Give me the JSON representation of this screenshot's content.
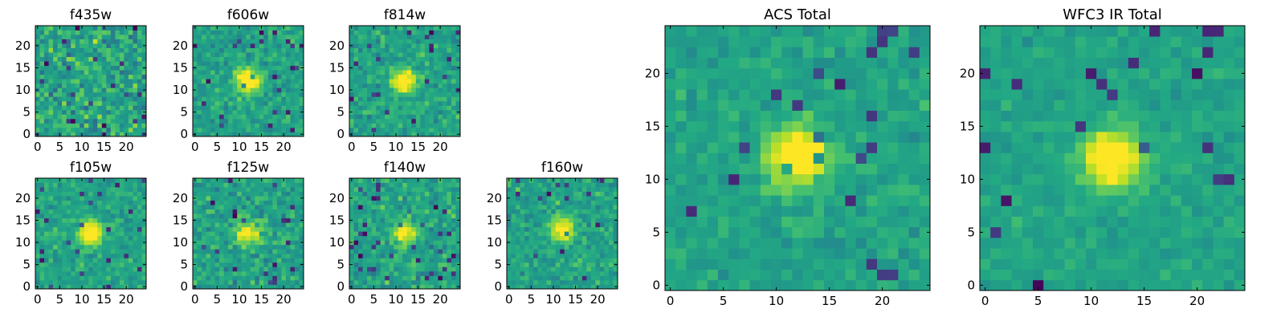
{
  "chart_data": [
    {
      "type": "heatmap",
      "title": "f435w",
      "x_ticks": [
        "0",
        "5",
        "10",
        "15",
        "20"
      ],
      "y_ticks": [
        "0",
        "5",
        "10",
        "15",
        "20"
      ],
      "grid_size": 25,
      "source_peak": [
        12,
        12
      ],
      "source_strength": 0.0,
      "noise": 0.55,
      "seed": 11,
      "xlim": [
        0,
        25
      ],
      "ylim": [
        0,
        25
      ],
      "colormap": "viridis"
    },
    {
      "type": "heatmap",
      "title": "f606w",
      "x_ticks": [
        "0",
        "5",
        "10",
        "15",
        "20"
      ],
      "y_ticks": [
        "0",
        "5",
        "10",
        "15",
        "20"
      ],
      "grid_size": 25,
      "source_peak": [
        12,
        12
      ],
      "source_strength": 0.55,
      "noise": 0.35,
      "seed": 23,
      "xlim": [
        0,
        25
      ],
      "ylim": [
        0,
        25
      ],
      "colormap": "viridis"
    },
    {
      "type": "heatmap",
      "title": "f814w",
      "x_ticks": [
        "0",
        "5",
        "10",
        "15",
        "20"
      ],
      "y_ticks": [
        "0",
        "5",
        "10",
        "15",
        "20"
      ],
      "grid_size": 25,
      "source_peak": [
        12,
        12
      ],
      "source_strength": 0.6,
      "noise": 0.35,
      "seed": 37,
      "xlim": [
        0,
        25
      ],
      "ylim": [
        0,
        25
      ],
      "colormap": "viridis"
    },
    {
      "type": "heatmap",
      "title": "f105w",
      "x_ticks": [
        "0",
        "5",
        "10",
        "15",
        "20"
      ],
      "y_ticks": [
        "0",
        "5",
        "10",
        "15",
        "20"
      ],
      "grid_size": 25,
      "source_peak": [
        12,
        12
      ],
      "source_strength": 0.6,
      "noise": 0.3,
      "seed": 41,
      "xlim": [
        0,
        25
      ],
      "ylim": [
        0,
        25
      ],
      "colormap": "viridis"
    },
    {
      "type": "heatmap",
      "title": "f125w",
      "x_ticks": [
        "0",
        "5",
        "10",
        "15",
        "20"
      ],
      "y_ticks": [
        "0",
        "5",
        "10",
        "15",
        "20"
      ],
      "grid_size": 25,
      "source_peak": [
        12,
        12
      ],
      "source_strength": 0.45,
      "noise": 0.4,
      "seed": 53,
      "xlim": [
        0,
        25
      ],
      "ylim": [
        0,
        25
      ],
      "colormap": "viridis"
    },
    {
      "type": "heatmap",
      "title": "f140w",
      "x_ticks": [
        "0",
        "5",
        "10",
        "15",
        "20"
      ],
      "y_ticks": [
        "0",
        "5",
        "10",
        "15",
        "20"
      ],
      "grid_size": 25,
      "source_peak": [
        12,
        12
      ],
      "source_strength": 0.45,
      "noise": 0.4,
      "seed": 67,
      "xlim": [
        0,
        25
      ],
      "ylim": [
        0,
        25
      ],
      "colormap": "viridis"
    },
    {
      "type": "heatmap",
      "title": "f160w",
      "x_ticks": [
        "0",
        "5",
        "10",
        "15",
        "20"
      ],
      "y_ticks": [
        "0",
        "5",
        "10",
        "15",
        "20"
      ],
      "grid_size": 25,
      "source_peak": [
        12,
        13
      ],
      "source_strength": 0.5,
      "noise": 0.35,
      "seed": 79,
      "xlim": [
        0,
        25
      ],
      "ylim": [
        0,
        25
      ],
      "colormap": "viridis"
    },
    {
      "type": "heatmap",
      "title": "ACS Total",
      "x_ticks": [
        "0",
        "5",
        "10",
        "15",
        "20"
      ],
      "y_ticks": [
        "0",
        "5",
        "10",
        "15",
        "20"
      ],
      "grid_size": 25,
      "source_peak": [
        12,
        12
      ],
      "source_strength": 0.65,
      "noise": 0.25,
      "seed": 89,
      "xlim": [
        0,
        25
      ],
      "ylim": [
        0,
        25
      ],
      "colormap": "viridis"
    },
    {
      "type": "heatmap",
      "title": "WFC3 IR Total",
      "x_ticks": [
        "0",
        "5",
        "10",
        "15",
        "20"
      ],
      "y_ticks": [
        "0",
        "5",
        "10",
        "15",
        "20"
      ],
      "grid_size": 25,
      "source_peak": [
        12,
        12
      ],
      "source_strength": 0.6,
      "noise": 0.2,
      "seed": 97,
      "xlim": [
        0,
        25
      ],
      "ylim": [
        0,
        25
      ],
      "colormap": "viridis"
    }
  ],
  "colors": {
    "viridis_dark": "#440154",
    "viridis_blue": "#3b528b",
    "viridis_teal": "#21918c",
    "viridis_green": "#5ec962",
    "viridis_yellow": "#fde725"
  }
}
